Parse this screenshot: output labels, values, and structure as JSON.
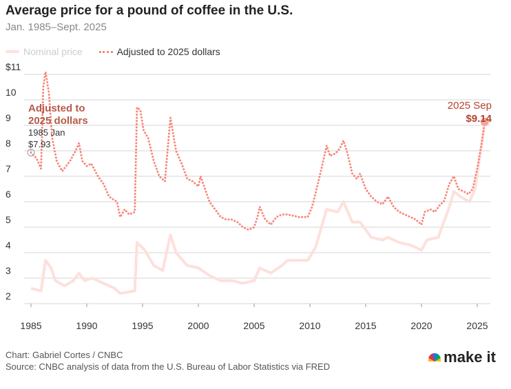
{
  "chart_data": {
    "type": "line",
    "title": "Average price for a pound of coffee in the U.S.",
    "subtitle": "Jan. 1985–Sept. 2025",
    "xlabel": "",
    "ylabel": "",
    "xlim": [
      1985,
      2025.75
    ],
    "ylim": [
      2,
      11
    ],
    "x_ticks": [
      "1985",
      "1990",
      "1995",
      "2000",
      "2005",
      "2010",
      "2015",
      "2020",
      "2025"
    ],
    "y_ticks": [
      "$11",
      "10",
      "9",
      "8",
      "7",
      "6",
      "5",
      "4",
      "3",
      "2"
    ],
    "grid": true,
    "legend_position": "top-left",
    "series": [
      {
        "name": "Nominal price",
        "color": "#fde0dc",
        "style": "solid",
        "x": [
          1985,
          1985.9,
          1986.3,
          1986.8,
          1987.2,
          1988,
          1988.8,
          1989.3,
          1989.8,
          1990.5,
          1991.5,
          1992.5,
          1993,
          1994.3,
          1994.5,
          1995.2,
          1996,
          1996.8,
          1997.5,
          1998,
          1999,
          2000,
          2001,
          2002,
          2003,
          2004,
          2005,
          2005.5,
          2006.5,
          2007.5,
          2008,
          2009.8,
          2010.5,
          2011.5,
          2012.5,
          2013,
          2013.8,
          2014.5,
          2015.5,
          2016.5,
          2017,
          2018,
          2019,
          2020,
          2020.5,
          2021.5,
          2022.5,
          2022.9,
          2023.5,
          2024.3,
          2024.8,
          2025.67
        ],
        "y": [
          2.6,
          2.5,
          3.7,
          3.4,
          2.9,
          2.7,
          2.9,
          3.2,
          2.9,
          3.0,
          2.8,
          2.6,
          2.4,
          2.5,
          4.4,
          4.1,
          3.5,
          3.3,
          4.7,
          4.0,
          3.5,
          3.4,
          3.1,
          2.9,
          2.9,
          2.8,
          2.9,
          3.4,
          3.2,
          3.5,
          3.7,
          3.7,
          4.2,
          5.7,
          5.6,
          6.0,
          5.2,
          5.2,
          4.6,
          4.5,
          4.6,
          4.4,
          4.3,
          4.1,
          4.5,
          4.6,
          5.8,
          6.4,
          6.2,
          6.0,
          6.5,
          9.14
        ]
      },
      {
        "name": "Adjusted to 2025 dollars",
        "color": "#f7877a",
        "style": "dotted",
        "x": [
          1985,
          1985.5,
          1985.9,
          1986.1,
          1986.3,
          1986.6,
          1986.9,
          1987.3,
          1987.8,
          1988.5,
          1989,
          1989.3,
          1989.6,
          1990,
          1990.4,
          1991,
          1991.5,
          1992,
          1992.7,
          1993,
          1993.4,
          1993.8,
          1994.3,
          1994.5,
          1994.8,
          1995.1,
          1995.5,
          1996,
          1996.5,
          1997,
          1997.5,
          1998,
          1998.5,
          1999,
          1999.5,
          2000,
          2000.2,
          2000.6,
          2001,
          2001.5,
          2002,
          2002.5,
          2003,
          2003.5,
          2004,
          2004.5,
          2005,
          2005.3,
          2005.5,
          2006,
          2006.5,
          2007,
          2007.5,
          2008,
          2009,
          2009.8,
          2010.2,
          2010.6,
          2011.2,
          2011.5,
          2011.8,
          2012.3,
          2012.7,
          2013,
          2013.3,
          2013.8,
          2014.2,
          2014.5,
          2015,
          2015.5,
          2016,
          2016.5,
          2017,
          2017.5,
          2018,
          2018.5,
          2019,
          2019.5,
          2020,
          2020.3,
          2020.8,
          2021.2,
          2021.7,
          2022,
          2022.5,
          2022.9,
          2023.3,
          2023.8,
          2024.2,
          2024.6,
          2025,
          2025.4,
          2025.67
        ],
        "y": [
          7.93,
          7.7,
          7.3,
          10.5,
          11.1,
          10.3,
          8.5,
          7.6,
          7.2,
          7.6,
          8.0,
          8.3,
          7.6,
          7.4,
          7.5,
          7.0,
          6.7,
          6.2,
          6.0,
          5.4,
          5.7,
          5.5,
          5.6,
          9.7,
          9.6,
          8.8,
          8.5,
          7.6,
          7.0,
          6.8,
          9.3,
          8.0,
          7.5,
          6.9,
          6.8,
          6.6,
          7.0,
          6.5,
          6.0,
          5.7,
          5.4,
          5.3,
          5.3,
          5.2,
          5.0,
          4.9,
          5.0,
          5.4,
          5.8,
          5.3,
          5.1,
          5.4,
          5.5,
          5.5,
          5.4,
          5.4,
          5.8,
          6.5,
          7.6,
          8.2,
          7.8,
          7.9,
          8.1,
          8.4,
          8.0,
          7.1,
          6.9,
          7.1,
          6.5,
          6.2,
          6.0,
          5.9,
          6.2,
          5.8,
          5.6,
          5.5,
          5.4,
          5.3,
          5.1,
          5.6,
          5.7,
          5.6,
          5.9,
          6.0,
          6.7,
          7.0,
          6.5,
          6.4,
          6.3,
          6.5,
          7.3,
          8.3,
          9.14
        ]
      }
    ],
    "annotations": [
      {
        "label": "Adjusted to 2025 dollars",
        "date": "1985 Jan",
        "value": "$7.93"
      },
      {
        "date": "2025 Sep",
        "value": "$9.14"
      }
    ]
  },
  "legend": {
    "nominal": "Nominal price",
    "adjusted": "Adjusted to 2025 dollars"
  },
  "footer": {
    "credit": "Chart: Gabriel Cortes / CNBC",
    "source": "Source: CNBC analysis of data from the U.S. Bureau of Labor Statistics via FRED",
    "logo": "make it",
    "logo_small": "CNBC"
  },
  "colors": {
    "accent": "#b5422f",
    "adjusted": "#f7877a",
    "nominal": "#fde0dc",
    "label": "#b55a4a"
  }
}
